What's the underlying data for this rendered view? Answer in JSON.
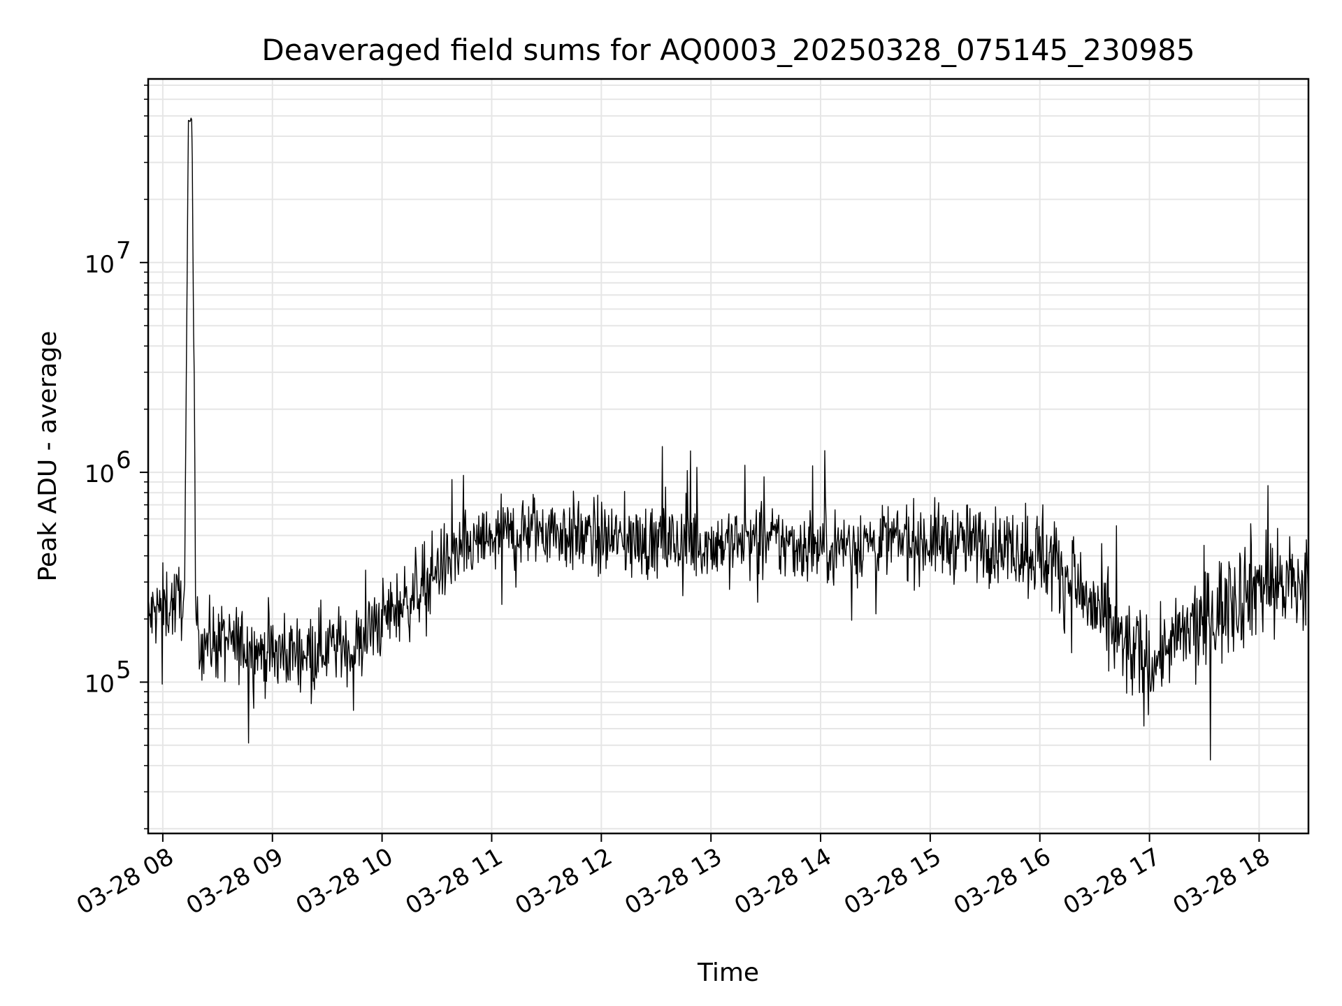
{
  "chart_data": {
    "type": "line",
    "title": "Deaveraged field sums for AQ0003_20250328_075145_230985",
    "xlabel": "Time",
    "ylabel": "Peak ADU - average",
    "y_scale": "log",
    "grid": true,
    "line_color": "#000000",
    "xlim": [
      "03-28 07:52",
      "03-28 18:27"
    ],
    "ylim": [
      19000,
      75000000
    ],
    "x_ticks": [
      {
        "value": "03-28 08:00",
        "label": "03-28 08"
      },
      {
        "value": "03-28 09:00",
        "label": "03-28 09"
      },
      {
        "value": "03-28 10:00",
        "label": "03-28 10"
      },
      {
        "value": "03-28 11:00",
        "label": "03-28 11"
      },
      {
        "value": "03-28 12:00",
        "label": "03-28 12"
      },
      {
        "value": "03-28 13:00",
        "label": "03-28 13"
      },
      {
        "value": "03-28 14:00",
        "label": "03-28 14"
      },
      {
        "value": "03-28 15:00",
        "label": "03-28 15"
      },
      {
        "value": "03-28 16:00",
        "label": "03-28 16"
      },
      {
        "value": "03-28 17:00",
        "label": "03-28 17"
      },
      {
        "value": "03-28 18:00",
        "label": "03-28 18"
      }
    ],
    "y_ticks": [
      {
        "value": 100000,
        "base": "10",
        "exp": "5"
      },
      {
        "value": 1000000,
        "base": "10",
        "exp": "6"
      },
      {
        "value": 10000000,
        "base": "10",
        "exp": "7"
      }
    ],
    "series": [
      {
        "x": [
          "03-28 07:52",
          "03-28 08:00",
          "03-28 08:08",
          "03-28 08:12",
          "03-28 08:14",
          "03-28 08:16",
          "03-28 08:18",
          "03-28 08:20",
          "03-28 08:30",
          "03-28 08:45",
          "03-28 09:00",
          "03-28 09:15",
          "03-28 09:30",
          "03-28 09:45",
          "03-28 10:00",
          "03-28 10:15",
          "03-28 10:30",
          "03-28 10:45",
          "03-28 11:00",
          "03-28 11:15",
          "03-28 11:30",
          "03-28 11:45",
          "03-28 12:00",
          "03-28 12:30",
          "03-28 13:00",
          "03-28 13:30",
          "03-28 14:00",
          "03-28 14:30",
          "03-28 15:00",
          "03-28 15:30",
          "03-28 16:00",
          "03-28 16:15",
          "03-28 16:30",
          "03-28 16:45",
          "03-28 17:00",
          "03-28 17:15",
          "03-28 17:30",
          "03-28 17:45",
          "03-28 18:00",
          "03-28 18:15",
          "03-28 18:27"
        ],
        "y": [
          200000,
          230000,
          240000,
          260000,
          48000000,
          48000000,
          200000,
          160000,
          155000,
          150000,
          135000,
          140000,
          150000,
          145000,
          200000,
          250000,
          350000,
          420000,
          480000,
          520000,
          540000,
          500000,
          480000,
          460000,
          460000,
          470000,
          440000,
          470000,
          470000,
          460000,
          420000,
          320000,
          220000,
          150000,
          120000,
          160000,
          190000,
          250000,
          300000,
          290000,
          280000
        ]
      }
    ]
  }
}
